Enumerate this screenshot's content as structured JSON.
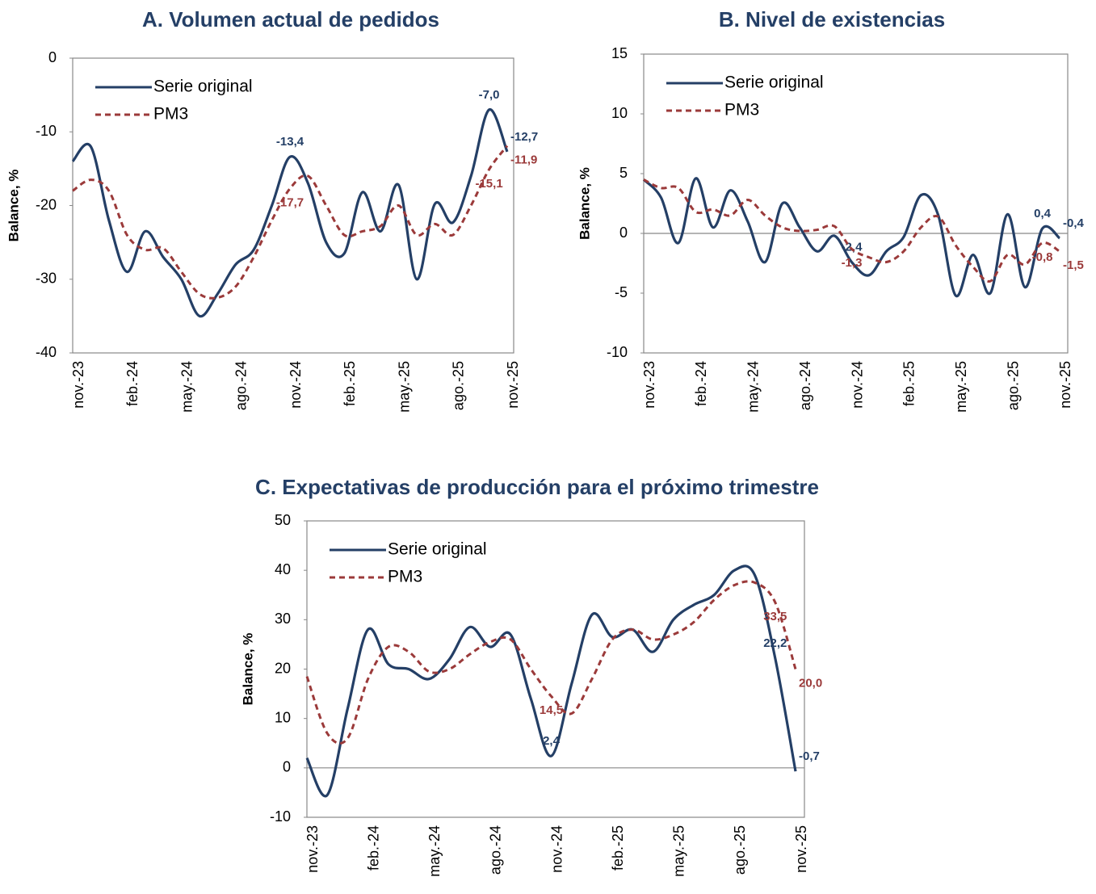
{
  "chart_data": [
    {
      "type": "line",
      "title": "A.  Volumen actual de pedidos",
      "y_label": "Balance, %",
      "categories": [
        "nov.-23",
        null,
        null,
        "feb.-24",
        null,
        null,
        "may.-24",
        null,
        null,
        "ago.-24",
        null,
        null,
        "nov.-24",
        null,
        null,
        "feb.-25",
        null,
        null,
        "may.-25",
        null,
        null,
        "ago.-25",
        null,
        null,
        "nov.-25"
      ],
      "series": [
        {
          "name": "Serie original",
          "color": "#243f66",
          "dash": false,
          "values": [
            -14,
            -12,
            -22,
            -29,
            -23.5,
            -27,
            -30,
            -35,
            -32,
            -28,
            -26,
            -20,
            -13.4,
            -17,
            -25,
            -26.5,
            -18.2,
            -23.5,
            -17.2,
            -30,
            -19.8,
            -22.3,
            -16,
            -7.0,
            -12.7
          ],
          "value_labels": [
            null,
            null,
            null,
            null,
            null,
            null,
            null,
            null,
            null,
            null,
            null,
            null,
            "-13,4",
            null,
            null,
            null,
            null,
            null,
            null,
            null,
            null,
            null,
            null,
            "-7,0",
            "-12,7"
          ]
        },
        {
          "name": "PM3",
          "color": "#9b3a3a",
          "dash": true,
          "values": [
            -18,
            -16.5,
            -18,
            -24,
            -26,
            -25.8,
            -29,
            -32,
            -32.5,
            -31,
            -27,
            -22,
            -17.7,
            -16,
            -20,
            -24,
            -23.5,
            -22.8,
            -20,
            -24,
            -22.5,
            -24,
            -20,
            -15.1,
            -11.9
          ],
          "value_labels": [
            null,
            null,
            null,
            null,
            null,
            null,
            null,
            null,
            null,
            null,
            null,
            null,
            "-17,7",
            null,
            null,
            null,
            null,
            null,
            null,
            null,
            null,
            null,
            null,
            "-15,1",
            "-11,9"
          ]
        }
      ],
      "ylim": [
        -40,
        0
      ],
      "yticks": [
        -40,
        -30,
        -20,
        -10,
        0
      ],
      "legend": "upper left"
    },
    {
      "type": "line",
      "title": "B.  Nivel de existencias",
      "y_label": "Balance, %",
      "categories": [
        "nov.-23",
        null,
        null,
        "feb.-24",
        null,
        null,
        "may.-24",
        null,
        null,
        "ago.-24",
        null,
        null,
        "nov.-24",
        null,
        null,
        "feb.-25",
        null,
        null,
        "may.-25",
        null,
        null,
        "ago.-25",
        null,
        null,
        "nov.-25"
      ],
      "series": [
        {
          "name": "Serie original",
          "color": "#243f66",
          "dash": false,
          "values": [
            4.5,
            3,
            -0.8,
            4.6,
            0.5,
            3.6,
            1,
            -2.4,
            2.5,
            0.5,
            -1.5,
            -0.2,
            -2.4,
            -3.5,
            -1.5,
            -0.3,
            3.2,
            1.5,
            -5.2,
            -1.8,
            -5,
            1.6,
            -4.5,
            0.4,
            -0.4
          ],
          "value_labels": [
            null,
            null,
            null,
            null,
            null,
            null,
            null,
            null,
            null,
            null,
            null,
            null,
            "-2,4",
            null,
            null,
            null,
            null,
            null,
            null,
            null,
            null,
            null,
            null,
            "0,4",
            "-0,4"
          ]
        },
        {
          "name": "PM3",
          "color": "#9b3a3a",
          "dash": true,
          "values": [
            4.5,
            3.8,
            3.8,
            1.8,
            2,
            1.5,
            2.8,
            1.5,
            0.5,
            0.2,
            0.3,
            0.6,
            -1.3,
            -2,
            -2.4,
            -1.5,
            0.5,
            1.4,
            -1,
            -2.8,
            -4,
            -1.8,
            -2.6,
            -0.8,
            -1.5
          ],
          "value_labels": [
            null,
            null,
            null,
            null,
            null,
            null,
            null,
            null,
            null,
            null,
            null,
            null,
            "-1,3",
            null,
            null,
            null,
            null,
            null,
            null,
            null,
            null,
            null,
            null,
            "-0,8",
            "-1,5"
          ]
        }
      ],
      "ylim": [
        -10,
        15
      ],
      "yticks": [
        -10,
        -5,
        0,
        5,
        10,
        15
      ],
      "legend": "upper left"
    },
    {
      "type": "line",
      "title": "C.  Expectativas de producción para el próximo trimestre",
      "y_label": "Balance, %",
      "categories": [
        "nov.-23",
        null,
        null,
        "feb.-24",
        null,
        null,
        "may.-24",
        null,
        null,
        "ago.-24",
        null,
        null,
        "nov.-24",
        null,
        null,
        "feb.-25",
        null,
        null,
        "may.-25",
        null,
        null,
        "ago.-25",
        null,
        null,
        "nov.-25"
      ],
      "series": [
        {
          "name": "Serie original",
          "color": "#243f66",
          "dash": false,
          "values": [
            2,
            -5.5,
            12,
            28,
            21,
            20,
            18,
            22,
            28.5,
            24.5,
            27,
            14,
            2.4,
            17,
            31,
            26.5,
            28,
            23.5,
            30,
            33,
            35,
            40,
            39,
            22.2,
            -0.7
          ],
          "value_labels": [
            null,
            null,
            null,
            null,
            null,
            null,
            null,
            null,
            null,
            null,
            null,
            null,
            "2,4",
            null,
            null,
            null,
            null,
            null,
            null,
            null,
            null,
            null,
            null,
            "22,2",
            "-0,7"
          ]
        },
        {
          "name": "PM3",
          "color": "#9b3a3a",
          "dash": true,
          "values": [
            18.5,
            7,
            6,
            18,
            24.5,
            23.5,
            19.5,
            20,
            23,
            25.5,
            26,
            20,
            14.5,
            11,
            18,
            26,
            28,
            26,
            27,
            29.5,
            34,
            37,
            37.5,
            33.5,
            20.0
          ],
          "value_labels": [
            null,
            null,
            null,
            null,
            null,
            null,
            null,
            null,
            null,
            null,
            null,
            null,
            "14,5",
            null,
            null,
            null,
            null,
            null,
            null,
            null,
            null,
            null,
            null,
            "33,5",
            "20,0"
          ]
        }
      ],
      "ylim": [
        -10,
        50
      ],
      "yticks": [
        -10,
        0,
        10,
        20,
        30,
        40,
        50
      ],
      "legend": "upper left"
    }
  ]
}
